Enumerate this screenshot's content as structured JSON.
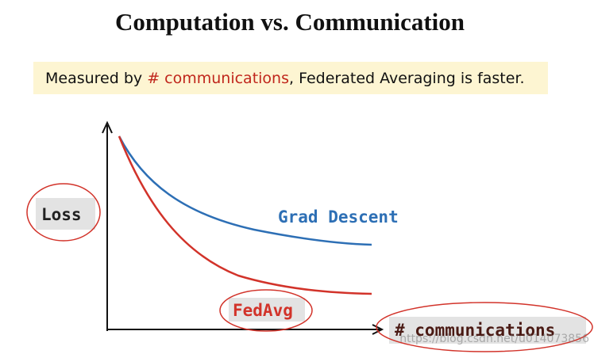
{
  "slide": {
    "title": "Computation vs. Communication",
    "subtitle": {
      "before": "Measured by ",
      "highlight": "# communications",
      "after": ", Federated Averaging is faster."
    },
    "y_axis_label": "Loss",
    "x_axis_label": "# communications",
    "curves": [
      {
        "label": "Grad Descent"
      },
      {
        "label": "FedAvg"
      }
    ],
    "watermark": "https://blog.csdn.net/u014073856"
  }
}
